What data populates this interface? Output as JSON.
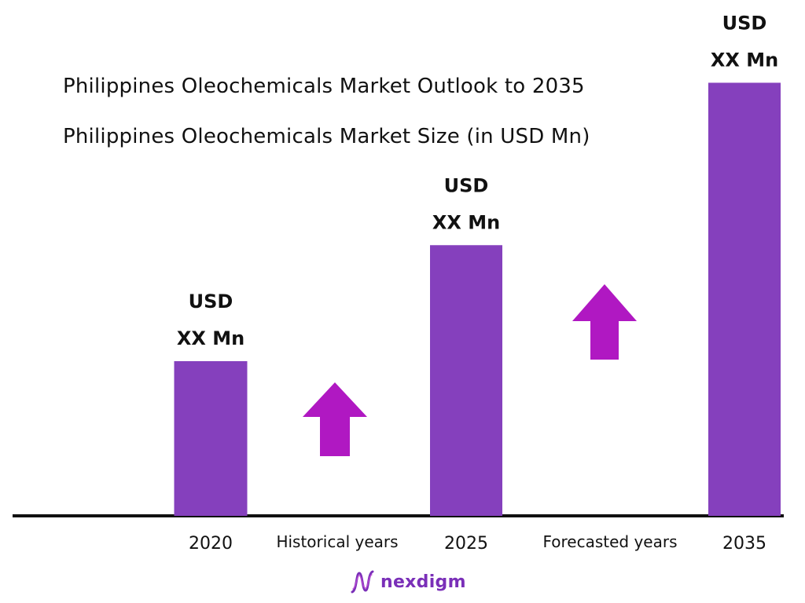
{
  "title": "Philippines Oleochemicals Market Outlook to 2035",
  "subtitle": "Philippines Oleochemicals Market Size (in USD Mn)",
  "logo": {
    "text": "nexdigm",
    "icon": "nexdigm-wave-logo"
  },
  "colors": {
    "bar": "#8540bd",
    "arrow": "#b018c2",
    "axis": "#111111",
    "text": "#111111",
    "logo": "#7a2fb8"
  },
  "chart_data": {
    "type": "bar",
    "title": "Philippines Oleochemicals Market Outlook to 2035",
    "subtitle": "Philippines Oleochemicals Market Size (in USD Mn)",
    "categories": [
      "2020",
      "2025",
      "2035"
    ],
    "values": [
      1.0,
      1.75,
      2.8
    ],
    "value_labels": [
      {
        "line1": "USD",
        "line2": "XX Mn"
      },
      {
        "line1": "USD",
        "line2": "XX Mn"
      },
      {
        "line1": "USD",
        "line2": "XX Mn"
      }
    ],
    "period_labels": [
      "Historical years",
      "Forecasted years"
    ],
    "period_arrows": [
      "up-arrow",
      "up-arrow"
    ],
    "grid": false,
    "legend": "none"
  }
}
